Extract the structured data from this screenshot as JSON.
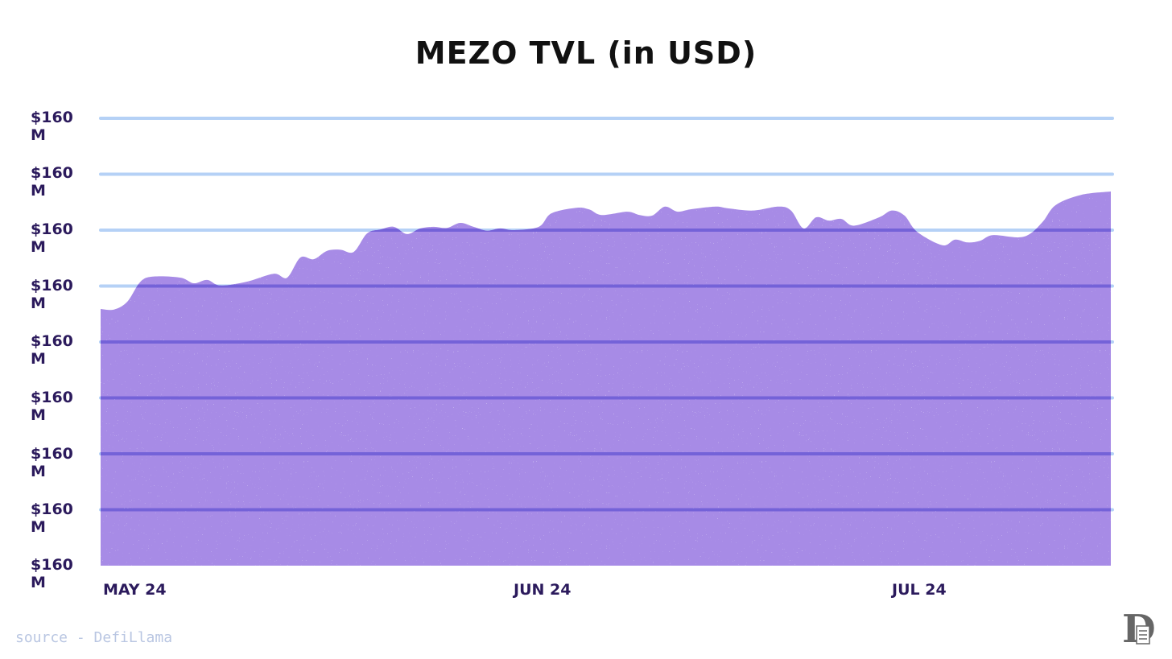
{
  "chart_data": {
    "type": "area",
    "title": "MEZO TVL (in USD)",
    "xlabel": "",
    "ylabel": "",
    "y_tick_labels": [
      "$160 M",
      "$160 M",
      "$160 M",
      "$160 M",
      "$160 M",
      "$160 M",
      "$160 M",
      "$160 M",
      "$160 M"
    ],
    "ylim": [
      0,
      8
    ],
    "x_tick_labels": [
      "MAY 24",
      "JUN 24",
      "JUL 24"
    ],
    "x_ticks": [
      "2024-05-01",
      "2024-06-01",
      "2024-07-01"
    ],
    "grid": true,
    "legend": "none",
    "colors": {
      "fill": "#a78be6",
      "speckle": "#f3ecff",
      "grid_above": "#b5d1f6",
      "grid_inside": "#7462d8",
      "text": "#2b1a5c"
    },
    "series": [
      {
        "x": [
          "2024-05-01",
          "2024-05-02",
          "2024-05-03",
          "2024-05-04",
          "2024-05-05",
          "2024-05-07",
          "2024-05-08",
          "2024-05-09",
          "2024-05-10",
          "2024-05-12",
          "2024-05-14",
          "2024-05-15",
          "2024-05-16",
          "2024-05-17",
          "2024-05-18",
          "2024-05-19",
          "2024-05-20",
          "2024-05-21",
          "2024-05-22",
          "2024-05-23",
          "2024-05-24",
          "2024-05-25",
          "2024-05-26",
          "2024-05-27",
          "2024-05-28",
          "2024-05-29",
          "2024-05-30",
          "2024-05-31",
          "2024-06-01",
          "2024-06-03",
          "2024-06-04",
          "2024-06-06",
          "2024-06-07",
          "2024-06-08",
          "2024-06-10",
          "2024-06-11",
          "2024-06-12",
          "2024-06-13",
          "2024-06-14",
          "2024-06-15",
          "2024-06-17",
          "2024-06-18",
          "2024-06-20",
          "2024-06-22",
          "2024-06-23",
          "2024-06-24",
          "2024-06-25",
          "2024-06-26",
          "2024-06-27",
          "2024-06-28",
          "2024-06-30",
          "2024-07-01",
          "2024-07-02",
          "2024-07-03",
          "2024-07-05",
          "2024-07-06",
          "2024-07-07",
          "2024-07-08",
          "2024-07-09",
          "2024-07-11",
          "2024-07-12",
          "2024-07-13",
          "2024-07-14",
          "2024-07-16",
          "2024-07-17"
        ],
        "y": [
          4.59,
          4.58,
          4.72,
          5.08,
          5.17,
          5.15,
          5.05,
          5.11,
          5.01,
          5.08,
          5.22,
          5.15,
          5.51,
          5.48,
          5.63,
          5.65,
          5.61,
          5.94,
          6.01,
          6.06,
          5.93,
          6.03,
          6.06,
          6.04,
          6.13,
          6.06,
          5.99,
          6.03,
          6.0,
          6.06,
          6.3,
          6.4,
          6.37,
          6.27,
          6.33,
          6.27,
          6.26,
          6.42,
          6.33,
          6.37,
          6.42,
          6.39,
          6.35,
          6.42,
          6.35,
          6.03,
          6.23,
          6.17,
          6.2,
          6.08,
          6.23,
          6.35,
          6.26,
          5.97,
          5.73,
          5.83,
          5.78,
          5.81,
          5.91,
          5.87,
          5.94,
          6.16,
          6.45,
          6.63,
          6.69
        ]
      }
    ]
  },
  "footer": {
    "source": "source - DefiLlama",
    "logo_text": "D"
  }
}
